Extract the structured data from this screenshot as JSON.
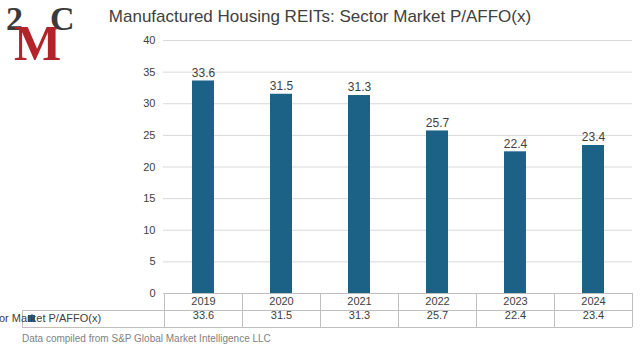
{
  "chart_data": {
    "type": "bar",
    "title": "Manufactured Housing REITs: Sector Market P/AFFO(x)",
    "logo": "2MC",
    "source": "Data compiled from S&P Global Market Intelligence LLC",
    "categories": [
      "2019",
      "2020",
      "2021",
      "2022",
      "2023",
      "2024"
    ],
    "series": [
      {
        "name": "Sector Market P/AFFO(x)",
        "color": "#1b6286",
        "values": [
          33.6,
          31.5,
          31.3,
          25.7,
          22.4,
          23.4
        ]
      }
    ],
    "ylim": [
      0,
      40
    ],
    "yticks": [
      0,
      5,
      10,
      15,
      20,
      25,
      30,
      35,
      40
    ],
    "grid": true,
    "data_labels": true
  }
}
